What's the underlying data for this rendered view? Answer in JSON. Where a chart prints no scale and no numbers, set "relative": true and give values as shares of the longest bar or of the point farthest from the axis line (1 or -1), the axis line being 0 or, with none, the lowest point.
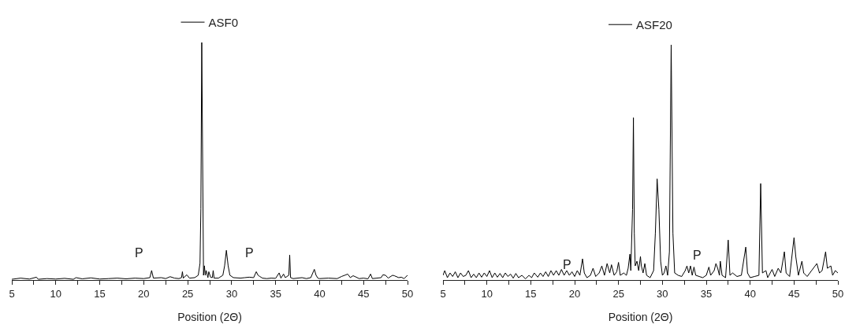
{
  "chart_data": [
    {
      "type": "line",
      "relative": true,
      "xlabel": "Position (2Θ)",
      "legend": "top",
      "tick_labels": "x",
      "grid": false,
      "marker": "none",
      "line_style": "solid",
      "xlim": [
        5,
        50
      ],
      "xticks": [
        5,
        {
          "value": 7.5,
          "label": null
        },
        10,
        {
          "value": 12.5,
          "label": null
        },
        15,
        {
          "value": 17.5,
          "label": null
        },
        20,
        {
          "value": 22.5,
          "label": null
        },
        25,
        {
          "value": 27.5,
          "label": null
        },
        30,
        {
          "value": 32.5,
          "label": null
        },
        35,
        {
          "value": 37.5,
          "label": null
        },
        40,
        {
          "value": 42.5,
          "label": null
        },
        45,
        {
          "value": 47.5,
          "label": null
        },
        50
      ],
      "annotations": [
        "P",
        "P"
      ],
      "series": [
        {
          "name": "ASF0",
          "color": "#000000",
          "x": [
            5,
            6,
            7,
            7.8,
            8,
            9,
            10,
            11,
            12,
            12.3,
            13,
            14,
            15,
            16,
            17,
            18,
            19,
            20,
            20.7,
            20.9,
            21.1,
            22,
            22.5,
            23,
            23.5,
            24,
            24.3,
            24.4,
            24.5,
            24.9,
            25.2,
            25.8,
            26.2,
            26.4,
            26.5,
            26.6,
            26.7,
            26.8,
            26.9,
            27.0,
            27.1,
            27.3,
            27.4,
            27.6,
            27.8,
            27.9,
            28.0,
            28.5,
            29.0,
            29.2,
            29.4,
            29.6,
            29.8,
            30.2,
            31,
            31.5,
            32,
            32.5,
            32.8,
            33.0,
            33.2,
            33.5,
            34,
            34.5,
            35,
            35.4,
            35.6,
            35.9,
            36.1,
            36.5,
            36.6,
            36.7,
            37,
            38,
            38.5,
            39,
            39.4,
            39.6,
            39.8,
            40,
            41,
            42,
            42.5,
            43,
            43.2,
            43.5,
            43.8,
            44,
            44.5,
            45,
            45.5,
            45.8,
            46,
            46.5,
            47,
            47.2,
            47.5,
            47.8,
            48.3,
            48.5,
            49,
            49.3,
            49.6,
            50
          ],
          "values": [
            0.003,
            0.008,
            0.004,
            0.012,
            0.003,
            0.006,
            0.004,
            0.007,
            0.003,
            0.01,
            0.005,
            0.009,
            0.004,
            0.006,
            0.008,
            0.005,
            0.008,
            0.006,
            0.01,
            0.04,
            0.008,
            0.01,
            0.006,
            0.014,
            0.008,
            0.006,
            0.01,
            0.035,
            0.008,
            0.022,
            0.008,
            0.01,
            0.02,
            0.07,
            0.3,
            1.0,
            0.5,
            0.02,
            0.06,
            0.02,
            0.04,
            0.01,
            0.035,
            0.012,
            0.01,
            0.04,
            0.008,
            0.008,
            0.02,
            0.06,
            0.125,
            0.06,
            0.02,
            0.01,
            0.008,
            0.01,
            0.012,
            0.01,
            0.035,
            0.02,
            0.015,
            0.008,
            0.006,
            0.008,
            0.007,
            0.03,
            0.008,
            0.025,
            0.01,
            0.02,
            0.105,
            0.01,
            0.006,
            0.01,
            0.006,
            0.01,
            0.045,
            0.02,
            0.008,
            0.006,
            0.008,
            0.006,
            0.015,
            0.022,
            0.025,
            0.01,
            0.018,
            0.015,
            0.006,
            0.008,
            0.005,
            0.025,
            0.006,
            0.008,
            0.01,
            0.022,
            0.02,
            0.008,
            0.02,
            0.018,
            0.01,
            0.012,
            0.006,
            0.02
          ]
        }
      ]
    },
    {
      "type": "line",
      "relative": true,
      "xlabel": "Position (2Θ)",
      "legend": "top",
      "tick_labels": "x",
      "grid": false,
      "marker": "none",
      "line_style": "solid",
      "xlim": [
        5,
        50
      ],
      "xticks": [
        5,
        {
          "value": 7.5,
          "label": null
        },
        10,
        {
          "value": 12.5,
          "label": null
        },
        15,
        {
          "value": 17.5,
          "label": null
        },
        20,
        {
          "value": 22.5,
          "label": null
        },
        25,
        {
          "value": 27.5,
          "label": null
        },
        30,
        {
          "value": 32.5,
          "label": null
        },
        35,
        {
          "value": 37.5,
          "label": null
        },
        40,
        {
          "value": 42.5,
          "label": null
        },
        45,
        {
          "value": 47.5,
          "label": null
        },
        50
      ],
      "annotations": [
        "P",
        "P"
      ],
      "series": [
        {
          "name": "ASF20",
          "color": "#000000",
          "x": [
            5,
            5.2,
            5.5,
            5.8,
            6.1,
            6.4,
            6.7,
            7,
            7.3,
            7.6,
            7.9,
            8.2,
            8.5,
            8.8,
            9.1,
            9.4,
            9.7,
            10,
            10.3,
            10.6,
            10.9,
            11.2,
            11.5,
            11.8,
            12.1,
            12.4,
            12.7,
            13,
            13.3,
            13.6,
            14,
            14.4,
            14.8,
            15.1,
            15.4,
            15.8,
            16.1,
            16.4,
            16.7,
            17,
            17.3,
            17.6,
            17.9,
            18.2,
            18.5,
            18.8,
            19.1,
            19.4,
            19.7,
            20,
            20.3,
            20.6,
            20.9,
            21.1,
            21.4,
            21.8,
            22.1,
            22.4,
            22.8,
            23.1,
            23.4,
            23.7,
            24,
            24.2,
            24.5,
            24.8,
            25,
            25.2,
            25.6,
            25.9,
            26.1,
            26.3,
            26.4,
            26.6,
            26.7,
            26.8,
            26.9,
            27.1,
            27.3,
            27.5,
            27.6,
            27.8,
            28,
            28.2,
            28.6,
            29,
            29.2,
            29.4,
            29.6,
            29.8,
            30,
            30.2,
            30.4,
            30.6,
            30.8,
            31,
            31.2,
            31.4,
            31.8,
            32.2,
            32.6,
            32.8,
            33,
            33.2,
            33.4,
            33.6,
            33.8,
            34.2,
            34.6,
            35,
            35.3,
            35.5,
            35.9,
            36.1,
            36.3,
            36.5,
            36.6,
            36.8,
            37.2,
            37.5,
            37.7,
            38,
            38.5,
            39,
            39.5,
            39.7,
            40,
            40.5,
            41,
            41.2,
            41.4,
            41.8,
            42,
            42.5,
            42.8,
            43.2,
            43.5,
            43.9,
            44.1,
            44.5,
            45,
            45.2,
            45.5,
            45.9,
            46.1,
            46.5,
            47,
            47.4,
            47.6,
            47.9,
            48.2,
            48.6,
            48.8,
            49.2,
            49.4,
            49.7,
            50
          ],
          "values": [
            0.02,
            0.04,
            0.01,
            0.03,
            0.015,
            0.035,
            0.01,
            0.03,
            0.015,
            0.02,
            0.04,
            0.01,
            0.025,
            0.01,
            0.03,
            0.012,
            0.03,
            0.015,
            0.04,
            0.01,
            0.03,
            0.012,
            0.028,
            0.01,
            0.03,
            0.015,
            0.025,
            0.008,
            0.028,
            0.01,
            0.02,
            0.005,
            0.02,
            0.01,
            0.03,
            0.012,
            0.03,
            0.015,
            0.035,
            0.015,
            0.04,
            0.02,
            0.04,
            0.02,
            0.045,
            0.02,
            0.04,
            0.02,
            0.035,
            0.015,
            0.04,
            0.02,
            0.09,
            0.03,
            0.01,
            0.02,
            0.05,
            0.015,
            0.03,
            0.06,
            0.02,
            0.07,
            0.03,
            0.065,
            0.02,
            0.035,
            0.075,
            0.02,
            0.03,
            0.02,
            0.05,
            0.11,
            0.04,
            0.3,
            0.69,
            0.2,
            0.06,
            0.08,
            0.04,
            0.1,
            0.06,
            0.03,
            0.07,
            0.02,
            0.01,
            0.04,
            0.2,
            0.43,
            0.3,
            0.08,
            0.02,
            0.03,
            0.06,
            0.02,
            0.12,
            1.0,
            0.2,
            0.03,
            0.02,
            0.015,
            0.04,
            0.06,
            0.03,
            0.06,
            0.02,
            0.055,
            0.02,
            0.015,
            0.01,
            0.02,
            0.055,
            0.02,
            0.04,
            0.07,
            0.05,
            0.02,
            0.08,
            0.02,
            0.01,
            0.17,
            0.02,
            0.03,
            0.015,
            0.02,
            0.14,
            0.03,
            0.01,
            0.015,
            0.02,
            0.41,
            0.03,
            0.04,
            0.01,
            0.045,
            0.015,
            0.05,
            0.03,
            0.12,
            0.03,
            0.015,
            0.18,
            0.1,
            0.02,
            0.08,
            0.03,
            0.015,
            0.04,
            0.06,
            0.07,
            0.03,
            0.04,
            0.12,
            0.05,
            0.06,
            0.02,
            0.04,
            0.03
          ]
        }
      ]
    }
  ]
}
